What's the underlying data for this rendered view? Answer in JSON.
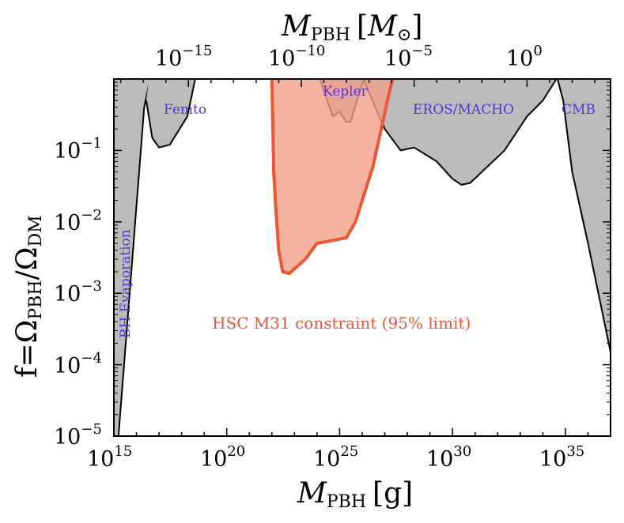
{
  "chart_data": {
    "type": "area",
    "title": "",
    "x_axis": {
      "label_main": "M",
      "label_sub": "PBH",
      "label_unit": "[g]",
      "scale": "log",
      "range": [
        1000000000000000.0,
        1e+37
      ],
      "ticks": [
        {
          "value": 1000000000000000.0,
          "base": "10",
          "exp": "15"
        },
        {
          "value": 1e+20,
          "base": "10",
          "exp": "20"
        },
        {
          "value": 1e+25,
          "base": "10",
          "exp": "25"
        },
        {
          "value": 1e+30,
          "base": "10",
          "exp": "30"
        },
        {
          "value": 1e+35,
          "base": "10",
          "exp": "35"
        }
      ]
    },
    "top_axis": {
      "label_main": "M",
      "label_sub": "PBH",
      "label_unit_open": "[",
      "label_unit_main": "M",
      "label_unit_sub": "⊙",
      "label_unit_close": "]",
      "scale": "log",
      "solar_mass_g": 2e+33,
      "ticks": [
        {
          "value": 1e-15,
          "base": "10",
          "exp": "−15"
        },
        {
          "value": 1e-10,
          "base": "10",
          "exp": "−10"
        },
        {
          "value": 1e-05,
          "base": "10",
          "exp": "−5"
        },
        {
          "value": 1,
          "base": "10",
          "exp": "0"
        }
      ]
    },
    "y_axis": {
      "label_prefix": "f=Ω",
      "label_sub1": "PBH",
      "label_mid": "/Ω",
      "label_sub2": "DM",
      "scale": "log",
      "range": [
        1e-05,
        1
      ],
      "ticks": [
        {
          "value": 1e-05,
          "base": "10",
          "exp": "−5"
        },
        {
          "value": 0.0001,
          "base": "10",
          "exp": "−4"
        },
        {
          "value": 0.001,
          "base": "10",
          "exp": "−3"
        },
        {
          "value": 0.01,
          "base": "10",
          "exp": "−2"
        },
        {
          "value": 0.1,
          "base": "10",
          "exp": "−1"
        }
      ]
    },
    "constraints": [
      {
        "name": "BH Evaporation",
        "label": "BH Evaporation",
        "color": "#bbbbbb",
        "points": [
          [
            1000000000000000.0,
            1e-05
          ],
          [
            1600000000000000.0,
            1e-05
          ],
          [
            2.2e+16,
            0.4
          ],
          [
            4e+16,
            1
          ],
          [
            1000000000000000.0,
            1
          ]
        ]
      },
      {
        "name": "Femto",
        "label": "Femto",
        "color": "#bbbbbb",
        "points": [
          [
            2.7e+16,
            0.5
          ],
          [
            5e+16,
            0.15
          ],
          [
            1e+17,
            0.11
          ],
          [
            3e+17,
            0.12
          ],
          [
            1.8e+18,
            0.3
          ],
          [
            4e+18,
            1
          ],
          [
            3.5e+16,
            1
          ]
        ]
      },
      {
        "name": "Kepler",
        "label": "Kepler",
        "color": "#bbbbbb",
        "points": [
          [
            1.3e+24,
            1
          ],
          [
            5e+24,
            0.3
          ],
          [
            1e+25,
            0.35
          ],
          [
            2e+25,
            0.25
          ],
          [
            3e+25,
            0.25
          ],
          [
            7e+25,
            0.6
          ],
          [
            1.2e+26,
            1
          ]
        ]
      },
      {
        "name": "EROS/MACHO",
        "label": "EROS/MACHO",
        "color": "#bbbbbb",
        "points": [
          [
            1.1e+26,
            1
          ],
          [
            1e+27,
            0.2
          ],
          [
            5e+27,
            0.1
          ],
          [
            2e+28,
            0.11
          ],
          [
            2e+29,
            0.07
          ],
          [
            1e+30,
            0.04
          ],
          [
            2.5e+30,
            0.033
          ],
          [
            6e+30,
            0.035
          ],
          [
            2e+32,
            0.1
          ],
          [
            2e+33,
            0.3
          ],
          [
            1e+34,
            0.5
          ],
          [
            4e+34,
            1
          ]
        ]
      },
      {
        "name": "CMB",
        "label": "CMB",
        "color": "#bbbbbb",
        "points": [
          [
            4.5e+34,
            1
          ],
          [
            8e+34,
            0.5
          ],
          [
            2e+35,
            0.05
          ],
          [
            1e+36,
            0.005
          ],
          [
            1e+37,
            0.00015
          ],
          [
            1e+37,
            1
          ]
        ]
      }
    ],
    "hsc": {
      "label": "HSC M31 constraint (95% limit)",
      "color": "#ee5533",
      "fill": "#f1a08a",
      "points": [
        [
          1e+22,
          1
        ],
        [
          1.2e+22,
          0.05
        ],
        [
          1.5e+22,
          0.015
        ],
        [
          2e+22,
          0.004
        ],
        [
          3e+22,
          0.002
        ],
        [
          6e+22,
          0.0019
        ],
        [
          1e+23,
          0.0022
        ],
        [
          3e+23,
          0.003
        ],
        [
          1e+24,
          0.005
        ],
        [
          5e+24,
          0.0055
        ],
        [
          2e+25,
          0.006
        ],
        [
          5e+25,
          0.01
        ],
        [
          1e+26,
          0.02
        ],
        [
          3e+26,
          0.06
        ],
        [
          7e+26,
          0.2
        ],
        [
          1.5e+27,
          0.6
        ],
        [
          2.2e+27,
          1
        ]
      ]
    }
  }
}
